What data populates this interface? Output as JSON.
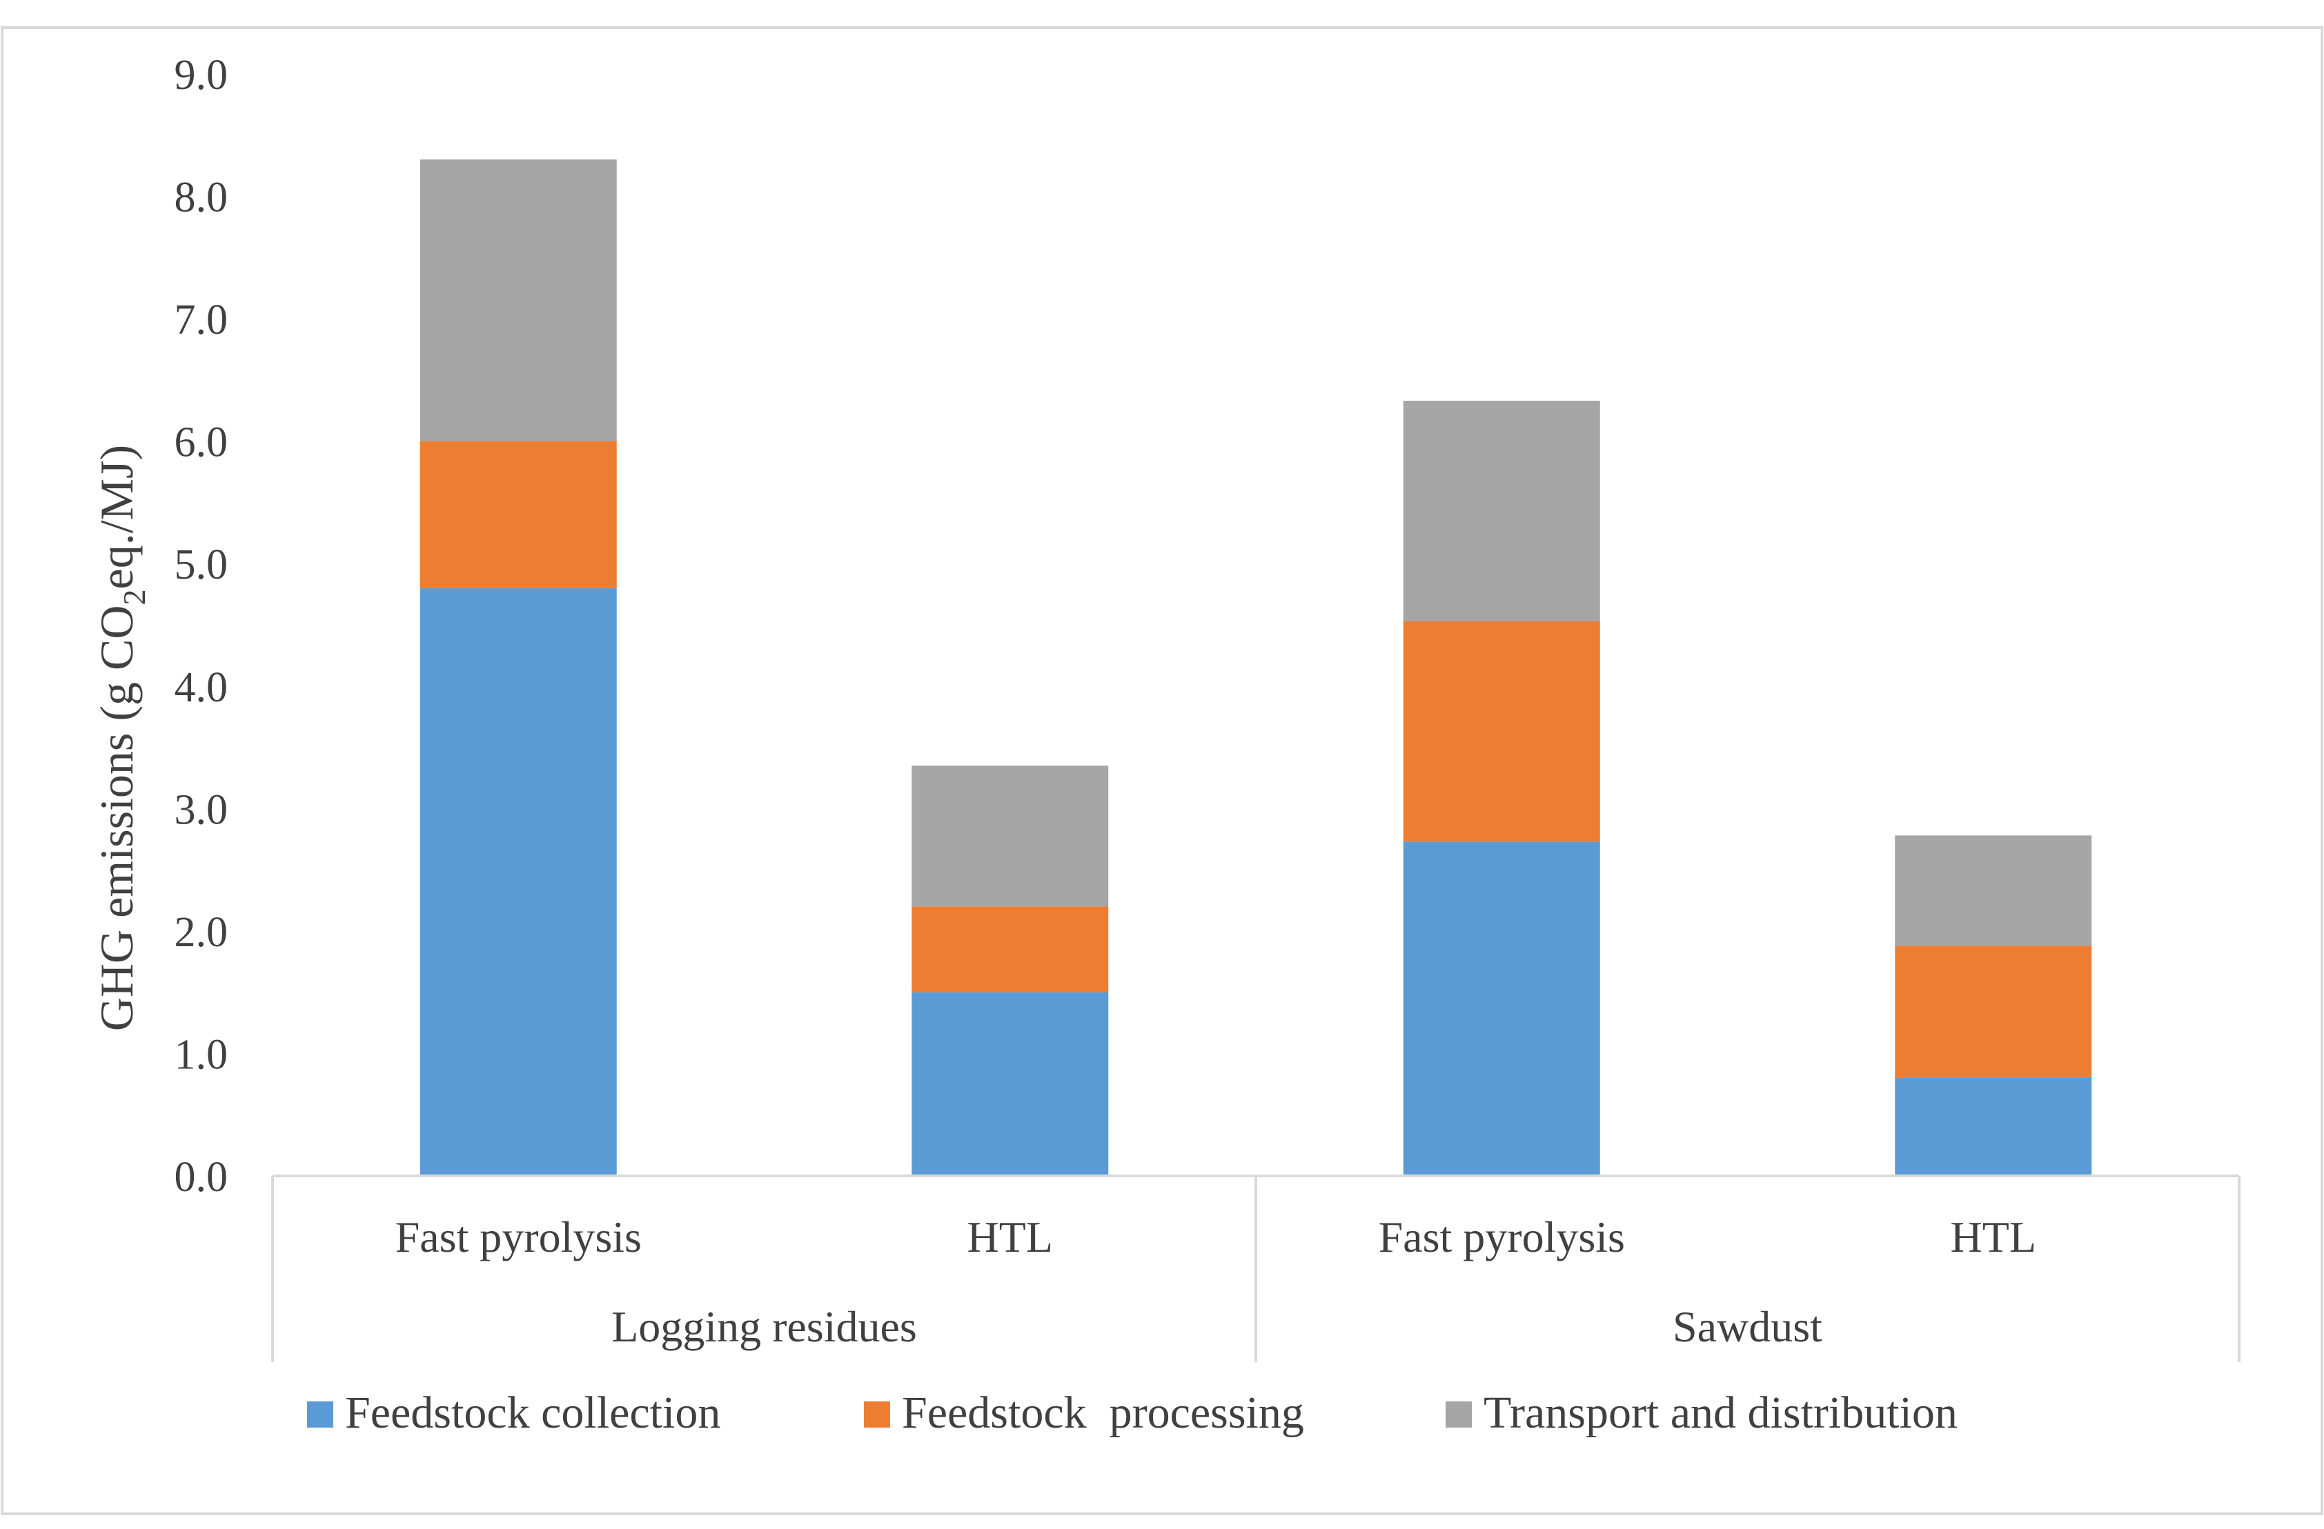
{
  "chart_data": {
    "type": "bar",
    "stacked": true,
    "title": "",
    "ylabel_main": "GHG emissions (g CO",
    "ylabel_sub": "2",
    "ylabel_tail": "eq./MJ)",
    "xlabel": "",
    "ylim": [
      0,
      9
    ],
    "yticks": [
      "0.0",
      "1.0",
      "2.0",
      "3.0",
      "4.0",
      "5.0",
      "6.0",
      "7.0",
      "8.0",
      "9.0"
    ],
    "grid": false,
    "legend_position": "bottom",
    "groups": [
      {
        "label": "Logging residues",
        "categories": [
          "Fast pyrolysis",
          "HTL"
        ]
      },
      {
        "label": "Sawdust",
        "categories": [
          "Fast pyrolysis",
          "HTL"
        ]
      }
    ],
    "categories": [
      "Fast pyrolysis",
      "HTL",
      "Fast pyrolysis",
      "HTL"
    ],
    "series": [
      {
        "name": "Feedstock collection",
        "color": "#5B9BD5",
        "values": [
          4.8,
          1.5,
          2.73,
          0.8
        ]
      },
      {
        "name": "Feedstock  processing",
        "color": "#ED7D31",
        "values": [
          1.2,
          0.7,
          1.8,
          1.08
        ]
      },
      {
        "name": "Transport and distribution",
        "color": "#A5A5A5",
        "values": [
          2.3,
          1.15,
          1.8,
          0.9
        ]
      }
    ]
  }
}
